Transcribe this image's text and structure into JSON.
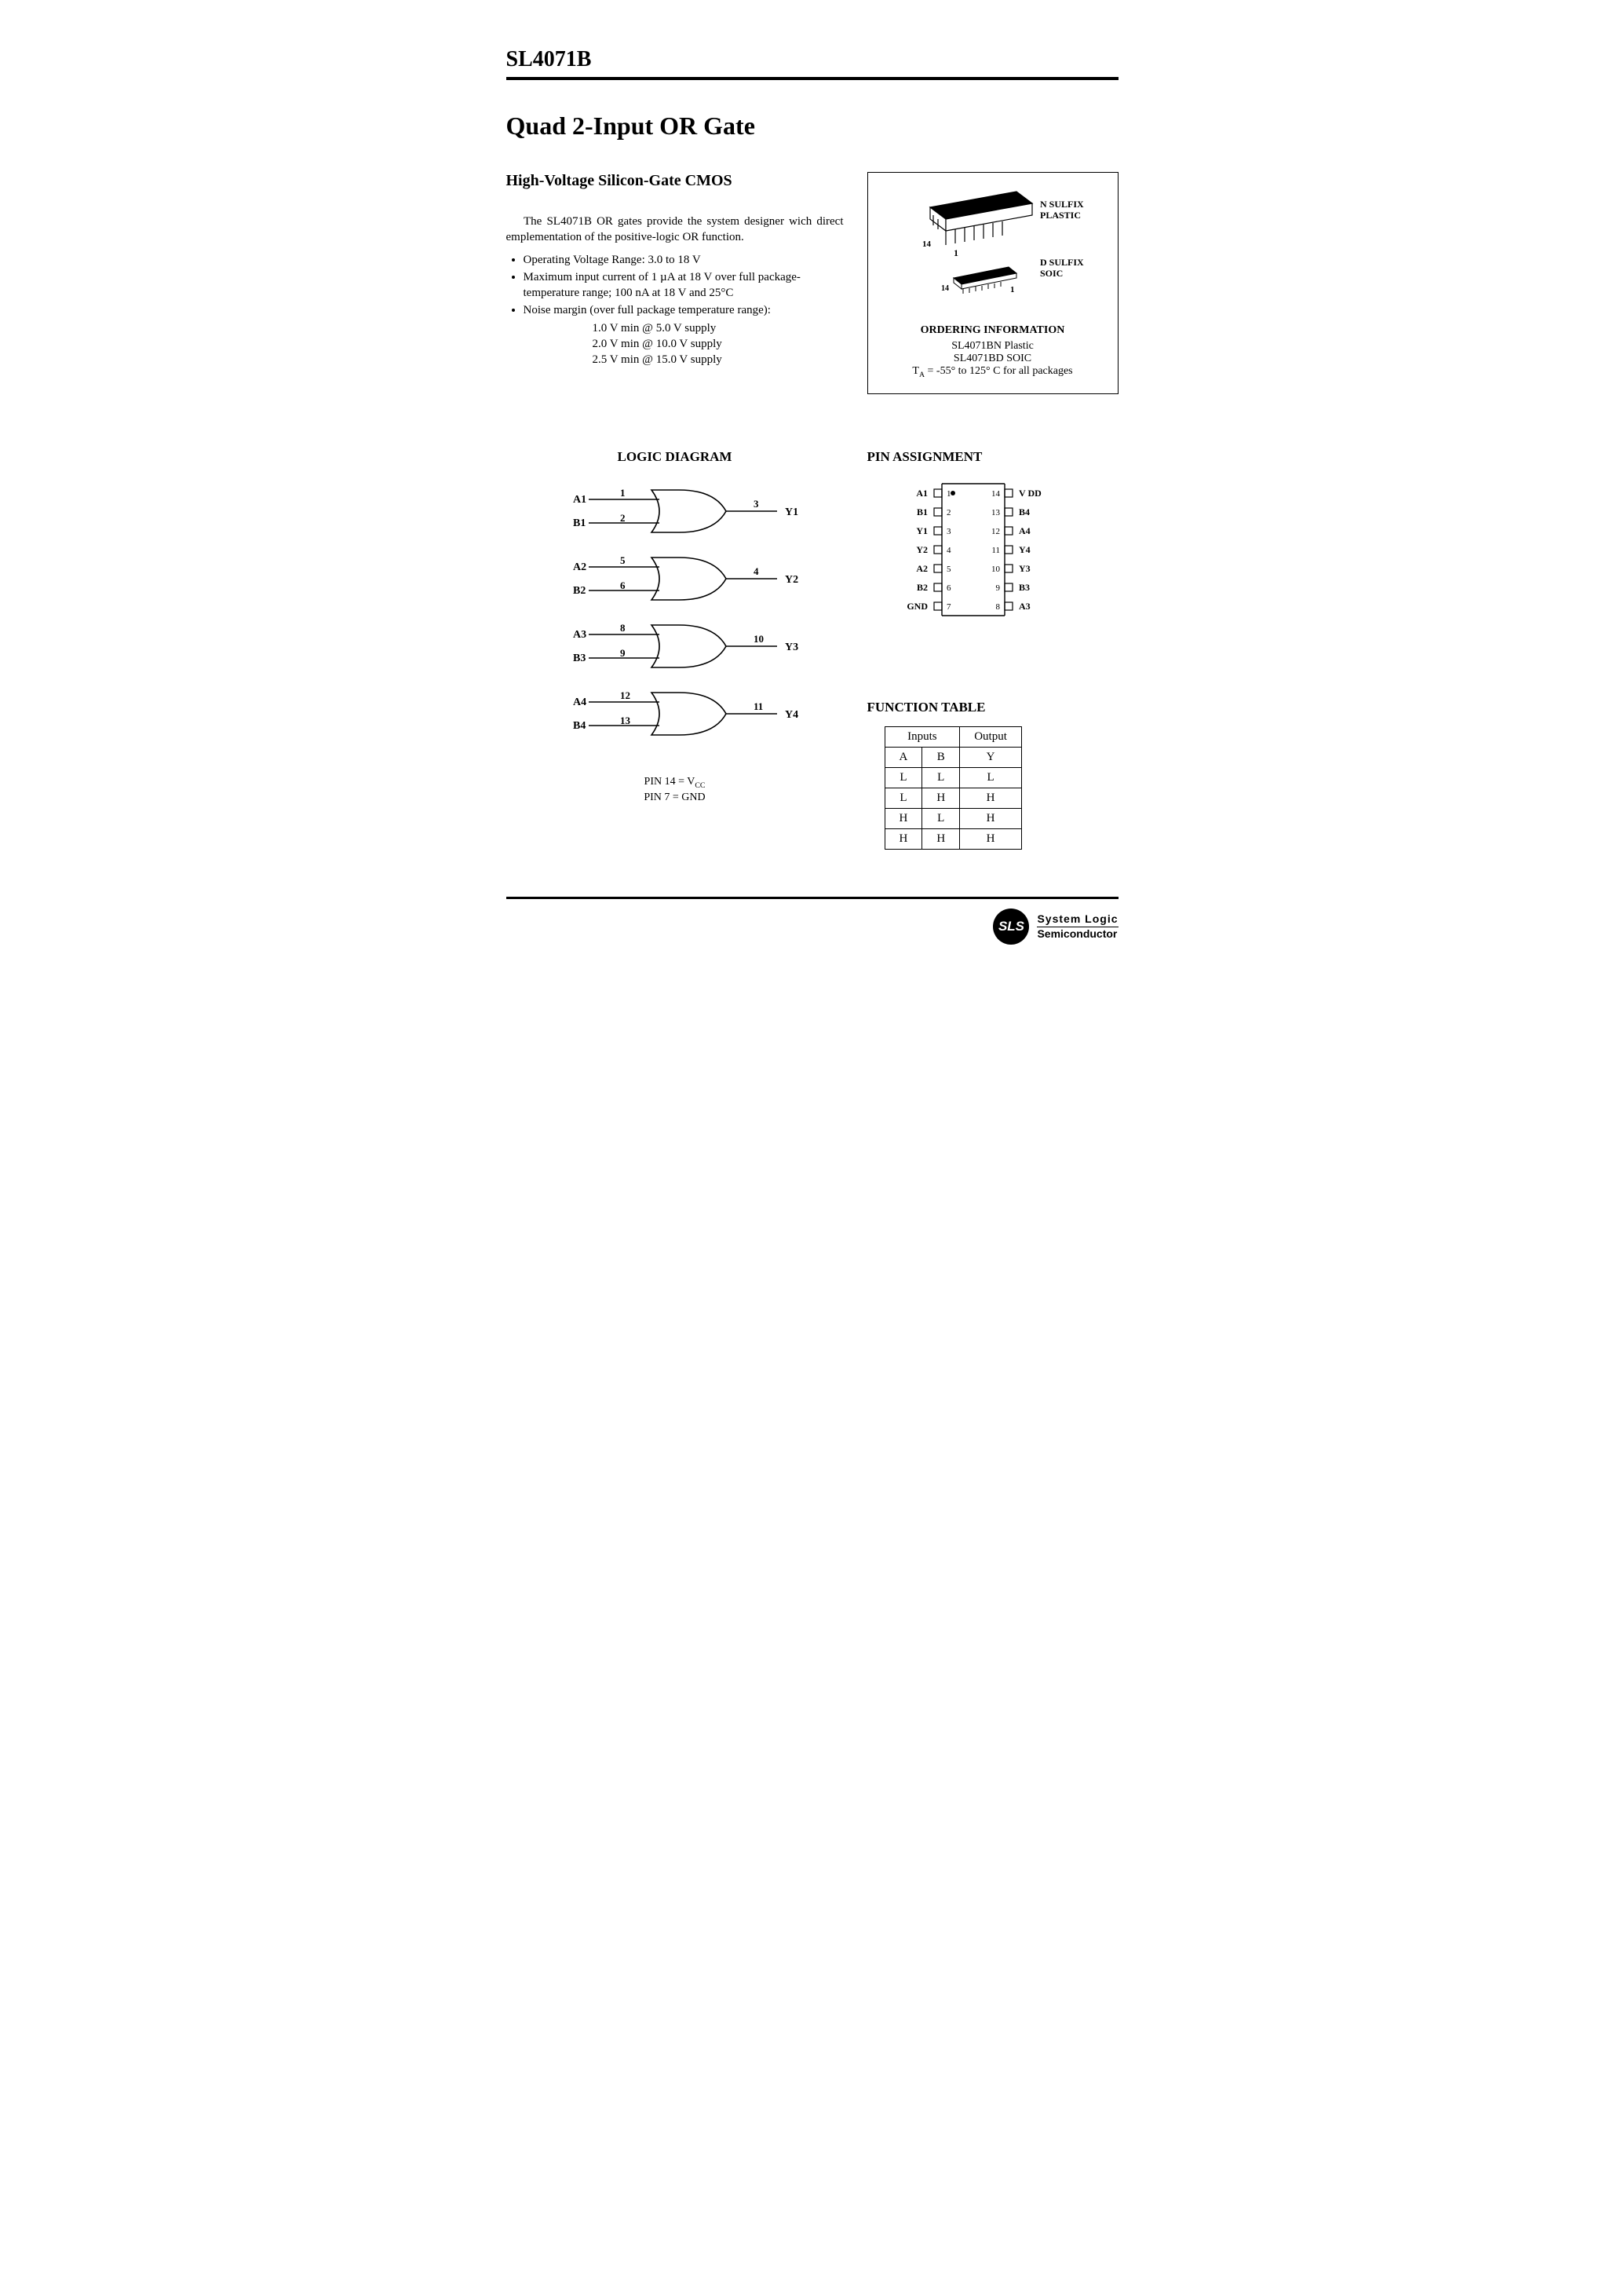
{
  "header": {
    "part_number": "SL4071B"
  },
  "title": "Quad 2-Input OR Gate",
  "subtitle": "High-Voltage Silicon-Gate CMOS",
  "intro": "The SL4071B OR gates provide the system designer wich direct emplementation of the positive-logic OR function.",
  "features": {
    "item1": "Operating Voltage Range: 3.0 to 18 V",
    "item2": "Maximum input current of 1 µA at 18 V over full package-temperature range; 100 nA at 18 V and 25°C",
    "item3": "Noise margin (over full package temperature range):"
  },
  "noise_margin": {
    "line1": "1.0 V min @ 5.0 V supply",
    "line2": "2.0 V min @ 10.0 V supply",
    "line3": "2.5 V min @ 15.0 V supply"
  },
  "ordering": {
    "n_suffix": "N SULFIX",
    "n_type": "PLASTIC",
    "d_suffix": "D SULFIX",
    "d_type": "SOIC",
    "heading": "ORDERING INFORMATION",
    "line1": "SL4071BN Plastic",
    "line2": "SL4071BD SOIC",
    "temp_prefix": "T",
    "temp_sub": "A",
    "temp_rest": " = -55° to 125° C for all packages"
  },
  "logic_diagram": {
    "heading": "LOGIC DIAGRAM",
    "gates": [
      {
        "a": "A1",
        "a_pin": "1",
        "b": "B1",
        "b_pin": "2",
        "y": "Y1",
        "y_pin": "3"
      },
      {
        "a": "A2",
        "a_pin": "5",
        "b": "B2",
        "b_pin": "6",
        "y": "Y2",
        "y_pin": "4"
      },
      {
        "a": "A3",
        "a_pin": "8",
        "b": "B3",
        "b_pin": "9",
        "y": "Y3",
        "y_pin": "10"
      },
      {
        "a": "A4",
        "a_pin": "12",
        "b": "B4",
        "b_pin": "13",
        "y": "Y4",
        "y_pin": "11"
      }
    ],
    "caption_line1_pre": "PIN 14 = V",
    "caption_line1_sub": "CC",
    "caption_line2": "PIN 7 = GND"
  },
  "pin_assignment": {
    "heading": "PIN ASSIGNMENT",
    "left": [
      "A1",
      "B1",
      "Y1",
      "Y2",
      "A2",
      "B2",
      "GND"
    ],
    "left_nums": [
      "1",
      "2",
      "3",
      "4",
      "5",
      "6",
      "7"
    ],
    "right": [
      "V DD",
      "B4",
      "A4",
      "Y4",
      "Y3",
      "B3",
      "A3"
    ],
    "right_nums": [
      "14",
      "13",
      "12",
      "11",
      "10",
      "9",
      "8"
    ]
  },
  "function_table": {
    "heading": "FUNCTION TABLE",
    "head_inputs": "Inputs",
    "head_output": "Output",
    "col_a": "A",
    "col_b": "B",
    "col_y": "Y",
    "rows": [
      [
        "L",
        "L",
        "L"
      ],
      [
        "L",
        "H",
        "H"
      ],
      [
        "H",
        "L",
        "H"
      ],
      [
        "H",
        "H",
        "H"
      ]
    ]
  },
  "footer": {
    "badge": "SLS",
    "line1": "System Logic",
    "line2": "Semiconductor"
  },
  "style": {
    "text_color": "#000000",
    "bg_color": "#ffffff",
    "stroke_width": 1.6,
    "font_family": "Times New Roman"
  }
}
